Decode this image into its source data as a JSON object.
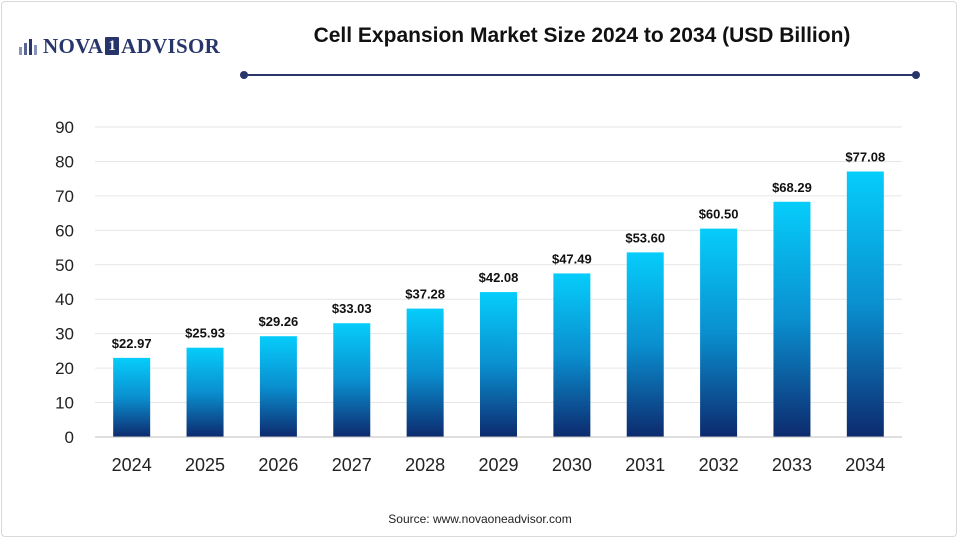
{
  "header": {
    "logo": {
      "left": "NOVA",
      "box": "1",
      "right": "ADVISOR"
    },
    "title": "Cell Expansion Market Size 2024 to 2034 (USD Billion)"
  },
  "source": "Source: www.novaoneadvisor.com",
  "colors": {
    "bar_top": "#06cdfb",
    "bar_mid": "#0a8fcf",
    "bar_bottom": "#0d2a6e",
    "brand": "#27356b"
  },
  "chart_data": {
    "type": "bar",
    "title": "Cell Expansion Market Size 2024 to 2034 (USD Billion)",
    "categories": [
      "2024",
      "2025",
      "2026",
      "2027",
      "2028",
      "2029",
      "2030",
      "2031",
      "2032",
      "2033",
      "2034"
    ],
    "values": [
      22.97,
      25.93,
      29.26,
      33.03,
      37.28,
      42.08,
      47.49,
      53.6,
      60.5,
      68.29,
      77.08
    ],
    "labels": [
      "$22.97",
      "$25.93",
      "$29.26",
      "$33.03",
      "$37.28",
      "$42.08",
      "$47.49",
      "$53.60",
      "$60.50",
      "$68.29",
      "$77.08"
    ],
    "yticks": [
      0,
      10,
      20,
      30,
      40,
      50,
      60,
      70,
      80,
      90
    ],
    "ylim": [
      0,
      90
    ],
    "xlabel": "",
    "ylabel": "",
    "grid": true,
    "legend": "none"
  }
}
